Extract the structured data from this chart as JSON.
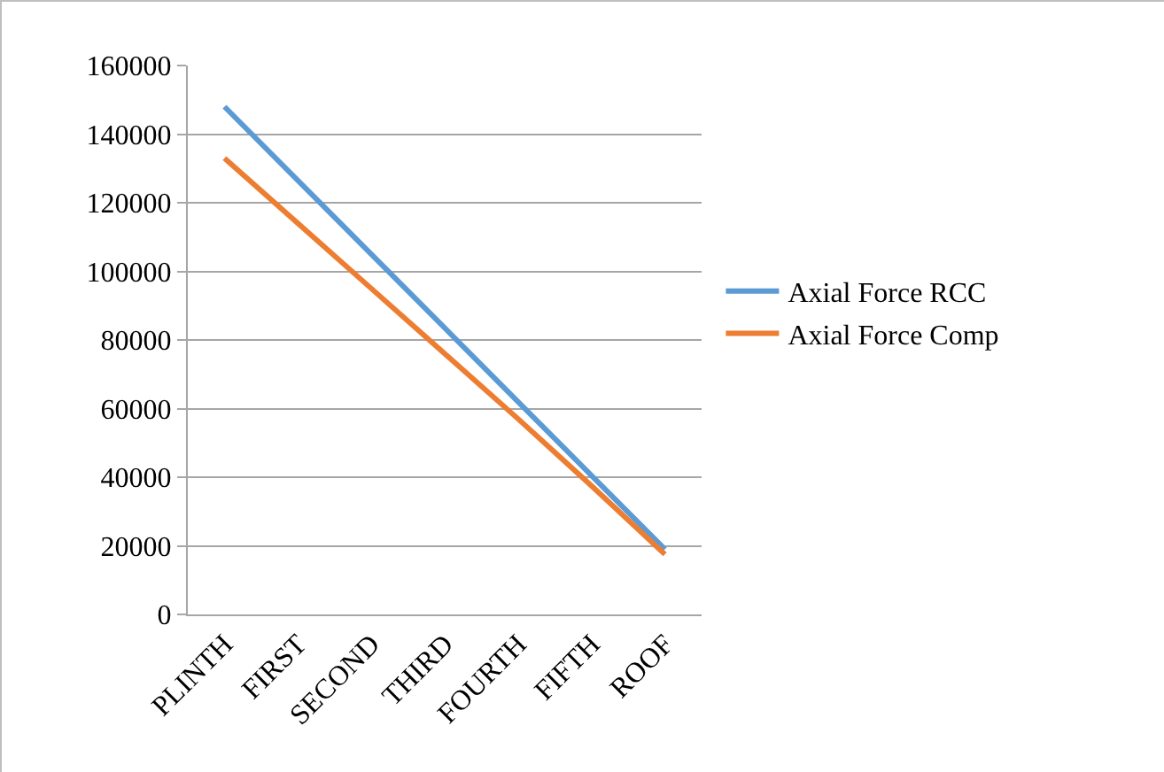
{
  "chart_data": {
    "type": "line",
    "categories": [
      "PLINTH",
      "FIRST",
      "SECOND",
      "THIRD",
      "FOURTH",
      "FIFTH",
      "ROOF"
    ],
    "series": [
      {
        "name": "Axial Force RCC",
        "color": "#5b9bd5",
        "values": [
          148000,
          126500,
          105000,
          83500,
          62000,
          40500,
          19000
        ]
      },
      {
        "name": "Axial Force Comp",
        "color": "#ed7d31",
        "values": [
          133000,
          114000,
          95000,
          76000,
          57000,
          37500,
          17500
        ]
      }
    ],
    "ylim": [
      0,
      160000
    ],
    "yticks": [
      0,
      20000,
      40000,
      60000,
      80000,
      100000,
      120000,
      140000,
      160000
    ],
    "grid": "y",
    "legend": "right",
    "marker": "none",
    "line_style": "solid"
  }
}
